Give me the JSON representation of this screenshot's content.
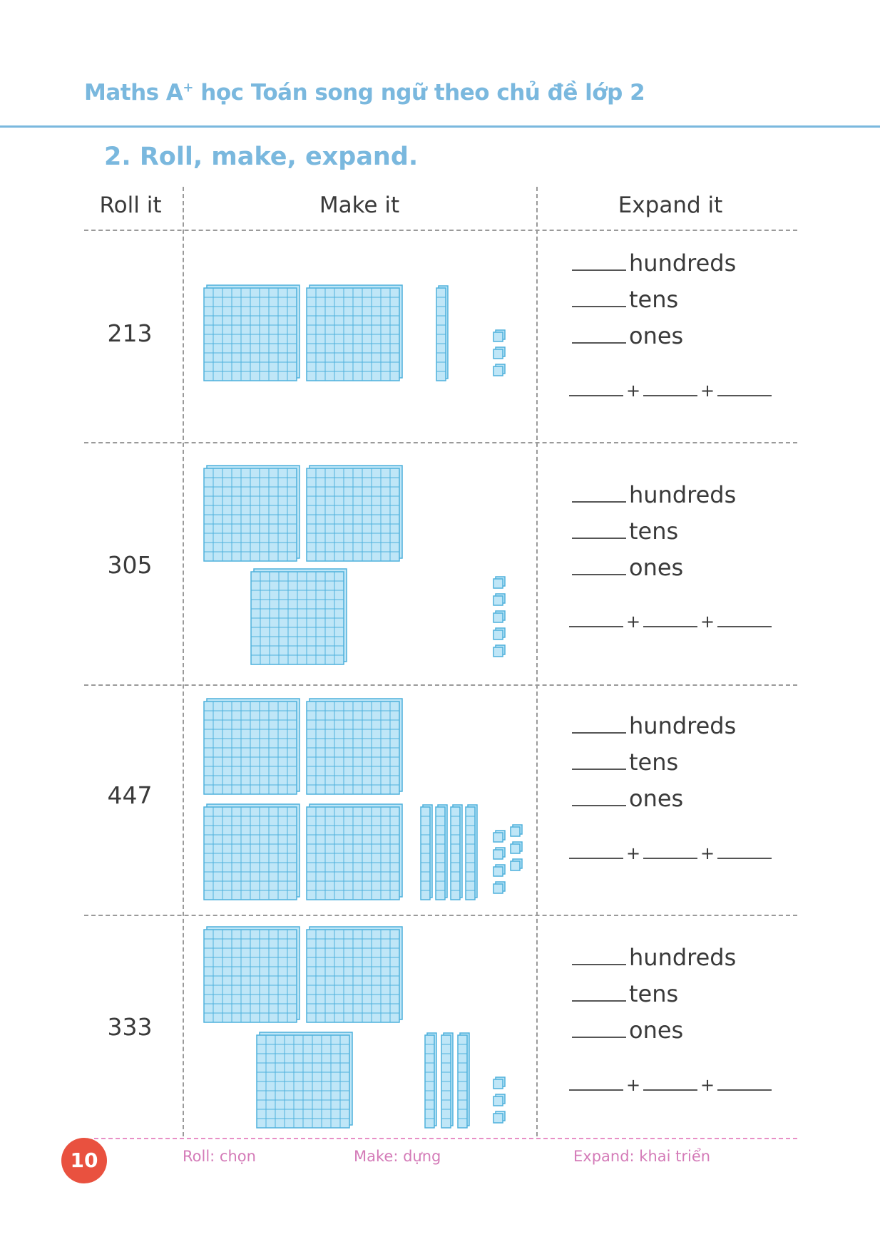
{
  "header": {
    "title_main": "Maths A",
    "title_sup": "+",
    "title_rest": " học Toán song ngữ theo chủ đề lớp 2"
  },
  "section": {
    "title": "2. Roll, make, expand."
  },
  "columns": {
    "roll": "Roll it",
    "make": "Make it",
    "expand": "Expand it"
  },
  "labels": {
    "hundreds": "hundreds",
    "tens": "tens",
    "ones": "ones",
    "plus": "+"
  },
  "rows": [
    {
      "number": "213",
      "hundreds": 2,
      "tens": 1,
      "ones": 3
    },
    {
      "number": "305",
      "hundreds": 3,
      "tens": 0,
      "ones": 5
    },
    {
      "number": "447",
      "hundreds": 4,
      "tens": 4,
      "ones": 7
    },
    {
      "number": "333",
      "hundreds": 3,
      "tens": 3,
      "ones": 3
    }
  ],
  "footer": {
    "page_number": "10",
    "gloss_roll": "Roll: chọn",
    "gloss_make": "Make: dựng",
    "gloss_expand": "Expand: khai triển"
  },
  "colors": {
    "accent": "#7ab8de",
    "block_fill": "#bfe6f7",
    "block_stroke": "#4fb1dc",
    "page_badge": "#e9513f",
    "gloss": "#d47bb8"
  }
}
